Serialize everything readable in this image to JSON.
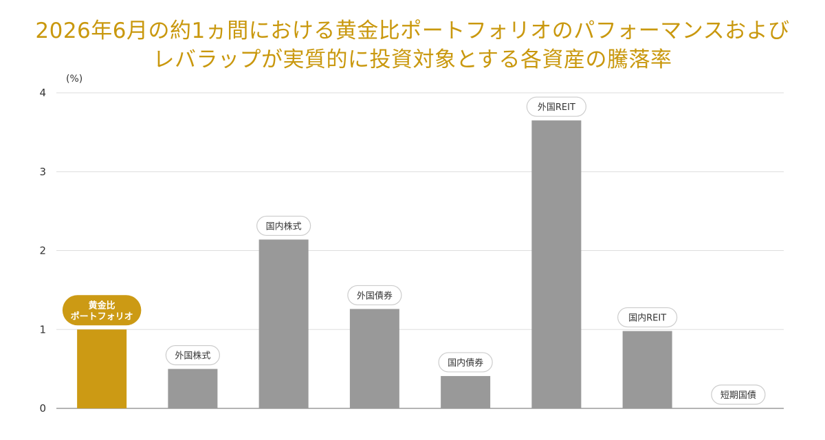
{
  "title": {
    "line1": "2026年6月の約1ヵ間における黄金比ポートフォリオのパフォーマンスおよび",
    "line2": "レバラップが実質的に投資対象とする各資産の騰落率"
  },
  "colors": {
    "title": "#c9980e",
    "highlight_bar": "#cc9a14",
    "bar": "#999999",
    "grid": "#dddddd",
    "axis": "#888888"
  },
  "chart_data": {
    "type": "bar",
    "title": "2026年6月の約1ヵ間における黄金比ポートフォリオのパフォーマンスおよびレバラップが実質的に投資対象とする各資産の騰落率",
    "ylabel": "(%)",
    "xlabel": "",
    "ylim": [
      0,
      4
    ],
    "yticks": [
      0,
      1,
      2,
      3,
      4
    ],
    "grid": true,
    "legend": "none",
    "categories": [
      {
        "label_lines": [
          "黄金比",
          "ポートフォリオ"
        ],
        "value": 1.0,
        "highlight": true
      },
      {
        "label_lines": [
          "外国株式"
        ],
        "value": 0.5,
        "highlight": false
      },
      {
        "label_lines": [
          "国内株式"
        ],
        "value": 2.14,
        "highlight": false
      },
      {
        "label_lines": [
          "外国債券"
        ],
        "value": 1.26,
        "highlight": false
      },
      {
        "label_lines": [
          "国内債券"
        ],
        "value": 0.41,
        "highlight": false
      },
      {
        "label_lines": [
          "外国REIT"
        ],
        "value": 3.65,
        "highlight": false
      },
      {
        "label_lines": [
          "国内REIT"
        ],
        "value": 0.98,
        "highlight": false
      },
      {
        "label_lines": [
          "短期国債"
        ],
        "value": 0.0,
        "highlight": false
      }
    ]
  }
}
